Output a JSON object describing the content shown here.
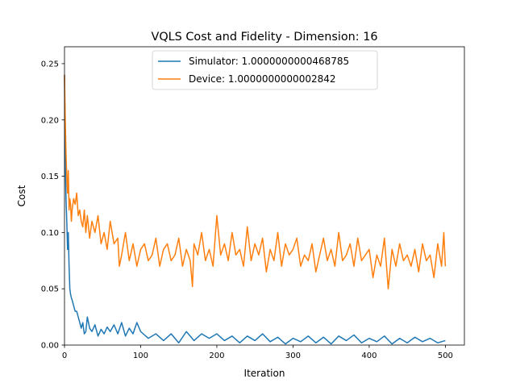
{
  "chart_data": {
    "type": "line",
    "title": "VQLS Cost and Fidelity - Dimension: 16",
    "xlabel": "Iteration",
    "ylabel": "Cost",
    "xlim": [
      0,
      525
    ],
    "ylim": [
      0,
      0.265
    ],
    "xticks": [
      0,
      100,
      200,
      300,
      400,
      500
    ],
    "xtick_labels": [
      "0",
      "100",
      "200",
      "300",
      "400",
      "500"
    ],
    "yticks": [
      0,
      0.05,
      0.1,
      0.15,
      0.2,
      0.25
    ],
    "ytick_labels": [
      "0.00",
      "0.05",
      "0.10",
      "0.15",
      "0.20",
      "0.25"
    ],
    "grid": false,
    "legend_position": "top-center",
    "series": [
      {
        "name": "Simulator: 1.0000000000468785",
        "color": "#1f77b4",
        "x": [
          0,
          1,
          2,
          3,
          4,
          5,
          6,
          7,
          8,
          9,
          10,
          12,
          14,
          16,
          18,
          20,
          22,
          24,
          26,
          28,
          30,
          33,
          36,
          40,
          44,
          48,
          52,
          56,
          60,
          65,
          70,
          75,
          80,
          85,
          90,
          95,
          100,
          110,
          120,
          130,
          140,
          150,
          160,
          170,
          180,
          190,
          200,
          210,
          220,
          230,
          240,
          250,
          260,
          270,
          280,
          290,
          300,
          310,
          320,
          330,
          340,
          350,
          360,
          370,
          380,
          390,
          400,
          410,
          420,
          430,
          440,
          450,
          460,
          470,
          480,
          490,
          500
        ],
        "values": [
          0.24,
          0.165,
          0.13,
          0.11,
          0.085,
          0.1,
          0.07,
          0.05,
          0.045,
          0.042,
          0.04,
          0.035,
          0.03,
          0.03,
          0.025,
          0.02,
          0.015,
          0.02,
          0.01,
          0.012,
          0.025,
          0.015,
          0.012,
          0.018,
          0.008,
          0.014,
          0.01,
          0.016,
          0.012,
          0.018,
          0.01,
          0.02,
          0.008,
          0.015,
          0.01,
          0.02,
          0.012,
          0.006,
          0.01,
          0.004,
          0.01,
          0.002,
          0.012,
          0.004,
          0.01,
          0.006,
          0.01,
          0.004,
          0.008,
          0.002,
          0.008,
          0.004,
          0.01,
          0.003,
          0.007,
          0.001,
          0.006,
          0.003,
          0.008,
          0.002,
          0.007,
          0.001,
          0.008,
          0.004,
          0.009,
          0.002,
          0.006,
          0.003,
          0.008,
          0.001,
          0.006,
          0.002,
          0.007,
          0.003,
          0.006,
          0.002,
          0.004
        ]
      },
      {
        "name": "Device: 1.0000000000002842",
        "color": "#ff7f0e",
        "x": [
          0,
          1,
          2,
          3,
          4,
          5,
          6,
          7,
          8,
          9,
          10,
          12,
          14,
          16,
          18,
          20,
          22,
          24,
          26,
          28,
          30,
          33,
          36,
          40,
          44,
          48,
          52,
          56,
          60,
          65,
          70,
          72,
          75,
          80,
          85,
          90,
          95,
          100,
          105,
          110,
          115,
          120,
          125,
          130,
          135,
          140,
          145,
          150,
          155,
          160,
          165,
          168,
          170,
          175,
          180,
          185,
          190,
          195,
          200,
          205,
          210,
          215,
          220,
          225,
          230,
          235,
          240,
          245,
          250,
          255,
          260,
          265,
          270,
          275,
          280,
          285,
          290,
          295,
          300,
          305,
          310,
          315,
          320,
          325,
          330,
          335,
          340,
          345,
          350,
          355,
          360,
          365,
          370,
          375,
          380,
          385,
          390,
          395,
          400,
          405,
          410,
          415,
          420,
          425,
          430,
          435,
          440,
          445,
          450,
          455,
          460,
          465,
          470,
          475,
          480,
          485,
          490,
          495,
          498,
          500
        ],
        "values": [
          0.24,
          0.2,
          0.17,
          0.15,
          0.135,
          0.155,
          0.12,
          0.13,
          0.125,
          0.11,
          0.12,
          0.13,
          0.125,
          0.135,
          0.115,
          0.12,
          0.11,
          0.105,
          0.12,
          0.1,
          0.115,
          0.095,
          0.11,
          0.1,
          0.115,
          0.09,
          0.1,
          0.085,
          0.11,
          0.09,
          0.095,
          0.07,
          0.08,
          0.1,
          0.075,
          0.09,
          0.07,
          0.085,
          0.09,
          0.075,
          0.08,
          0.095,
          0.07,
          0.085,
          0.09,
          0.075,
          0.08,
          0.095,
          0.07,
          0.085,
          0.075,
          0.052,
          0.09,
          0.08,
          0.1,
          0.075,
          0.085,
          0.07,
          0.115,
          0.08,
          0.09,
          0.075,
          0.1,
          0.08,
          0.085,
          0.07,
          0.105,
          0.075,
          0.09,
          0.08,
          0.095,
          0.065,
          0.085,
          0.075,
          0.1,
          0.07,
          0.09,
          0.08,
          0.085,
          0.095,
          0.07,
          0.08,
          0.075,
          0.09,
          0.065,
          0.08,
          0.095,
          0.075,
          0.085,
          0.07,
          0.1,
          0.075,
          0.08,
          0.09,
          0.07,
          0.095,
          0.075,
          0.08,
          0.085,
          0.06,
          0.08,
          0.07,
          0.095,
          0.05,
          0.085,
          0.07,
          0.09,
          0.075,
          0.08,
          0.07,
          0.085,
          0.065,
          0.09,
          0.075,
          0.08,
          0.06,
          0.09,
          0.07,
          0.1,
          0.07
        ]
      }
    ]
  }
}
